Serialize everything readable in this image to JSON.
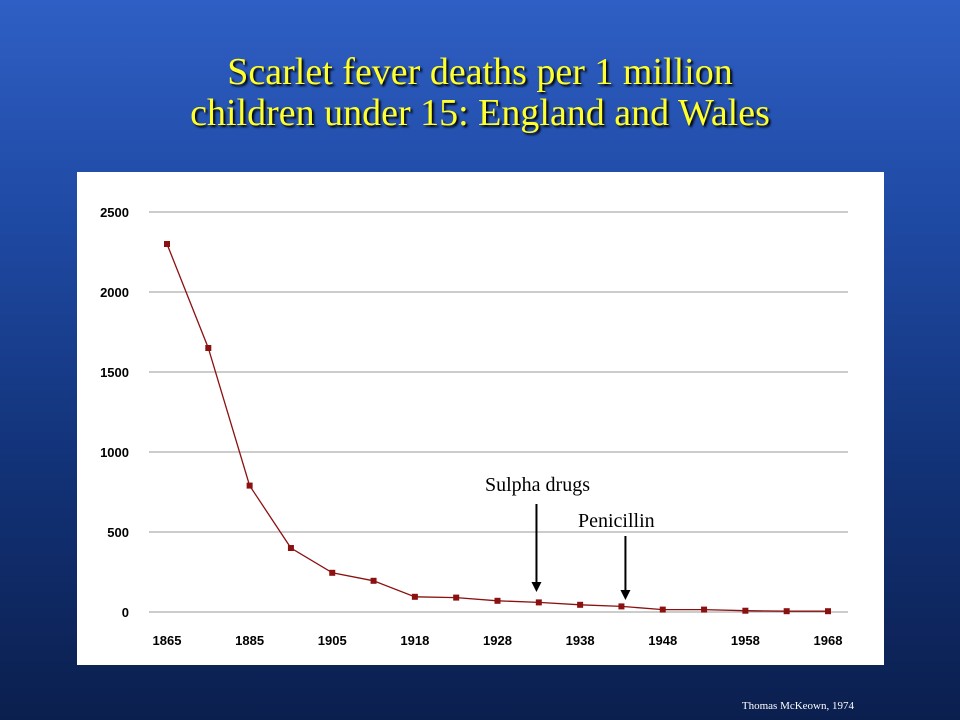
{
  "slide": {
    "title_line1": "Scarlet fever deaths per 1 million",
    "title_line2": "children under 15: England and Wales",
    "credit": "Thomas McKeown, 1974"
  },
  "colors": {
    "title": "#ffff2b",
    "series": "#8b1010",
    "grid": "#999999"
  },
  "chart_data": {
    "type": "line",
    "title": "Scarlet fever deaths per 1 million children under 15: England and Wales",
    "xlabel": "",
    "ylabel": "",
    "ylim": [
      0,
      2500
    ],
    "yticks": [
      0,
      500,
      1000,
      1500,
      2000,
      2500
    ],
    "xtick_labels": [
      "1865",
      "1885",
      "1905",
      "1918",
      "1928",
      "1938",
      "1948",
      "1958",
      "1968"
    ],
    "grid": true,
    "series": [
      {
        "values": [
          2300,
          1650,
          790,
          400,
          245,
          195,
          95,
          90,
          70,
          60,
          45,
          35,
          15,
          15,
          8,
          5,
          5
        ]
      }
    ],
    "annotations": [
      {
        "text": "Sulpha drugs",
        "point_index": 9.5
      },
      {
        "text": "Penicillin",
        "point_index": 11
      }
    ]
  }
}
